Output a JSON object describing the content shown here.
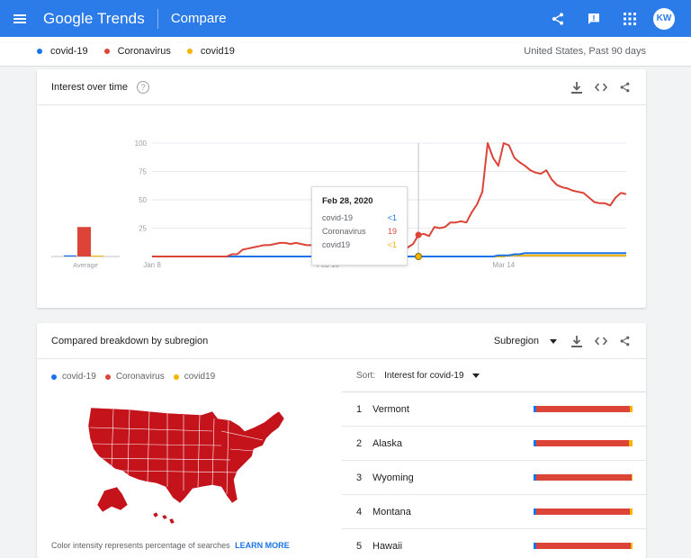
{
  "app": {
    "brand_google": "Google",
    "brand_trends": "Trends",
    "page_title": "Compare",
    "avatar_initials": "KW"
  },
  "terms": [
    {
      "label": "covid-19",
      "color": "#1a73e8"
    },
    {
      "label": "Coronavirus",
      "color": "#db4437"
    },
    {
      "label": "covid19",
      "color": "#f4b400"
    }
  ],
  "filter_summary": "United States, Past 90 days",
  "interest_over_time": {
    "title": "Interest over time",
    "help_symbol": "?",
    "average_label": "Average",
    "tooltip": {
      "date": "Feb 28, 2020",
      "rows": [
        {
          "label": "covid-19",
          "value": "<1"
        },
        {
          "label": "Coronavirus",
          "value": "19"
        },
        {
          "label": "covid19",
          "value": "<1"
        }
      ]
    }
  },
  "chart_data": {
    "type": "line",
    "x_tick_labels": [
      "Jan 8",
      "Feb 10",
      "Mar 14"
    ],
    "y_ticks": [
      25,
      50,
      75,
      100
    ],
    "ylim": [
      0,
      100
    ],
    "grid": true,
    "hover_index": 50,
    "averages": [
      1,
      26,
      0
    ],
    "series": [
      {
        "name": "covid-19",
        "values": [
          0,
          0,
          0,
          0,
          0,
          0,
          0,
          0,
          0,
          0,
          0,
          0,
          0,
          0,
          0,
          0,
          0,
          0,
          0,
          0,
          0,
          0,
          0,
          0,
          0,
          0,
          0,
          0,
          0,
          0,
          0,
          0,
          0,
          0,
          0,
          0,
          0,
          0,
          0,
          0,
          0,
          0,
          0,
          0,
          0,
          0,
          0,
          0,
          0,
          0,
          0,
          0,
          0,
          0,
          0,
          0,
          0,
          0,
          0,
          0,
          0,
          0,
          0,
          0,
          0,
          1,
          1,
          1,
          2,
          2,
          3,
          3,
          3,
          3,
          3,
          3,
          3,
          3,
          3,
          3,
          3,
          3,
          3,
          3,
          3,
          3,
          3,
          3,
          3,
          3
        ]
      },
      {
        "name": "Coronavirus",
        "values": [
          0,
          0,
          0,
          0,
          0,
          0,
          0,
          0,
          0,
          0,
          0,
          0,
          0,
          0,
          0,
          2,
          2,
          6,
          7,
          8,
          9,
          10,
          10,
          11,
          12,
          12,
          11,
          12,
          11,
          10,
          10,
          9,
          8,
          7,
          6,
          5,
          4,
          3,
          3,
          3,
          3,
          2,
          2,
          3,
          3,
          3,
          3,
          4,
          8,
          11,
          19,
          20,
          18,
          26,
          25,
          26,
          30,
          30,
          31,
          30,
          39,
          46,
          57,
          100,
          87,
          80,
          100,
          98,
          87,
          83,
          80,
          76,
          74,
          73,
          76,
          68,
          63,
          61,
          60,
          58,
          57,
          56,
          52,
          48,
          47,
          47,
          45,
          52,
          56,
          55
        ]
      },
      {
        "name": "covid19",
        "values": [
          0,
          0,
          0,
          0,
          0,
          0,
          0,
          0,
          0,
          0,
          0,
          0,
          0,
          0,
          0,
          0,
          0,
          0,
          0,
          0,
          0,
          0,
          0,
          0,
          0,
          0,
          0,
          0,
          0,
          0,
          0,
          0,
          0,
          0,
          0,
          0,
          0,
          0,
          0,
          0,
          0,
          0,
          0,
          0,
          0,
          0,
          0,
          0,
          0,
          0,
          0,
          0,
          0,
          0,
          0,
          0,
          0,
          0,
          0,
          0,
          0,
          0,
          0,
          0,
          0,
          0,
          0,
          1,
          1,
          1,
          1,
          1,
          1,
          1,
          1,
          1,
          1,
          1,
          1,
          1,
          1,
          1,
          1,
          1,
          1,
          1,
          1,
          1,
          1,
          1
        ]
      }
    ]
  },
  "breakdown": {
    "title": "Compared breakdown by subregion",
    "dropdown_label": "Subregion",
    "sort_prefix": "Sort:",
    "sort_value": "Interest for covid-19",
    "map_note": "Color intensity represents percentage of searches",
    "learn_more": "LEARN MORE",
    "regions": [
      {
        "rank": "1",
        "name": "Vermont",
        "share": [
          3,
          94,
          3
        ]
      },
      {
        "rank": "2",
        "name": "Alaska",
        "share": [
          3,
          93,
          4
        ]
      },
      {
        "rank": "3",
        "name": "Wyoming",
        "share": [
          3,
          96,
          1
        ]
      },
      {
        "rank": "4",
        "name": "Montana",
        "share": [
          3,
          94,
          3
        ]
      },
      {
        "rank": "5",
        "name": "Hawaii",
        "share": [
          3,
          95,
          2
        ]
      }
    ]
  }
}
